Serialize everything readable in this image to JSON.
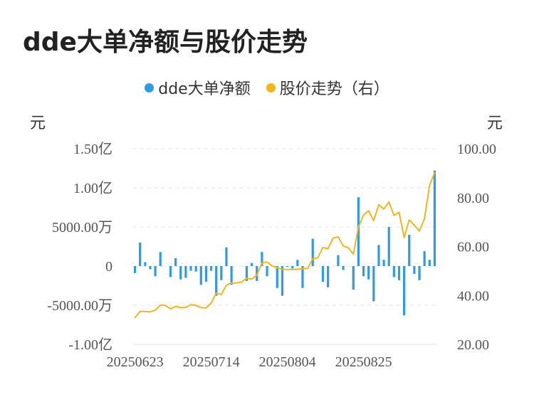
{
  "title": "dde大单净额与股价走势",
  "colors": {
    "bar": "#2f9be6",
    "line": "#f2b51c",
    "grid": "#e5e5e5",
    "text": "#555555"
  },
  "chart_data": {
    "type": "bar+line",
    "title": "dde大单净额与股价走势",
    "legend": [
      "dde大单净额",
      "股价走势（右）"
    ],
    "legend_position": "top-center",
    "y_left_unit": "元",
    "y_right_unit": "元",
    "y_left_ticks": [
      {
        "value": -10000,
        "label": "-1.00亿"
      },
      {
        "value": -5000,
        "label": "-5000.00万"
      },
      {
        "value": 0,
        "label": "0"
      },
      {
        "value": 5000,
        "label": "5000.00万"
      },
      {
        "value": 10000,
        "label": "1.00亿"
      },
      {
        "value": 15000,
        "label": "1.50亿"
      }
    ],
    "y_right_ticks": [
      {
        "value": 20,
        "label": "20.00"
      },
      {
        "value": 40,
        "label": "40.00"
      },
      {
        "value": 60,
        "label": "60.00"
      },
      {
        "value": 80,
        "label": "80.00"
      },
      {
        "value": 100,
        "label": "100.00"
      }
    ],
    "ylim_left": [
      -10000,
      15000
    ],
    "ylim_right": [
      20,
      100
    ],
    "x_ticks": [
      {
        "index": 0,
        "label": "20250623"
      },
      {
        "index": 15,
        "label": "20250714"
      },
      {
        "index": 30,
        "label": "20250804"
      },
      {
        "index": 45,
        "label": "20250825"
      }
    ],
    "grid": true,
    "series": [
      {
        "name": "dde大单净额",
        "kind": "bar",
        "axis": "left",
        "values": [
          -900,
          3000,
          500,
          -400,
          -1300,
          1800,
          0,
          -1400,
          1000,
          -1700,
          -1500,
          -600,
          -700,
          -2400,
          -2000,
          -600,
          -3800,
          -1800,
          2400,
          -2400,
          0,
          0,
          -1900,
          400,
          -1900,
          1800,
          -1300,
          0,
          -2800,
          -3800,
          -100,
          -300,
          800,
          -2800,
          0,
          3500,
          0,
          -2000,
          -2700,
          0,
          1400,
          -500,
          0,
          -3000,
          8800,
          -1300,
          -1700,
          -4500,
          2700,
          800,
          5000,
          -1400,
          -1800,
          -6300,
          4000,
          -1000,
          -1800,
          1900,
          800,
          12200
        ]
      },
      {
        "name": "股价走势（右）",
        "kind": "line",
        "axis": "right",
        "values": [
          30.9,
          33.5,
          33.4,
          33.3,
          34.0,
          36.0,
          35.9,
          34.5,
          35.5,
          35.0,
          35.1,
          36.2,
          35.9,
          35.0,
          34.9,
          36.9,
          41.0,
          40.4,
          44.2,
          45.1,
          45.1,
          45.5,
          47.0,
          46.7,
          48.3,
          53.3,
          53.7,
          52.1,
          51.3,
          50.7,
          50.6,
          50.6,
          50.7,
          50.9,
          51.0,
          55.0,
          55.4,
          59.6,
          59.1,
          63.4,
          64.0,
          60.2,
          59.5,
          56.9,
          67.9,
          72.9,
          74.6,
          70.6,
          77.1,
          75.3,
          78.2,
          72.7,
          74.0,
          63.7,
          70.9,
          68.7,
          66.3,
          71.4,
          85.0,
          90.2
        ]
      }
    ]
  }
}
